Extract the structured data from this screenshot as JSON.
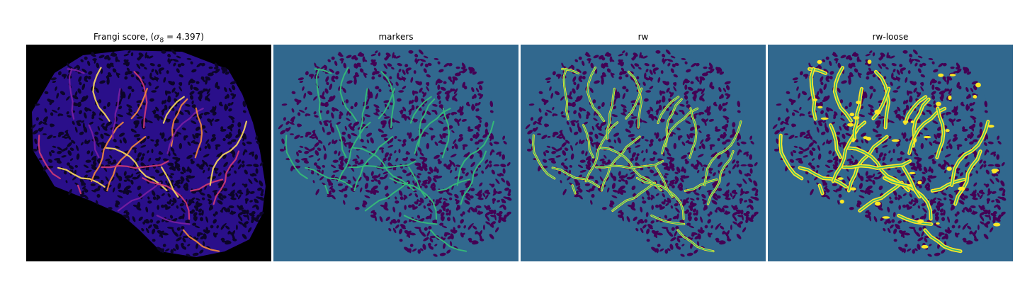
{
  "figure": {
    "panels": [
      {
        "key": "frangi",
        "title_prefix": "Frangi score, (",
        "title_symbol": "σ",
        "title_subscript": "8",
        "title_suffix": " = 4.397)"
      },
      {
        "key": "markers",
        "title": "markers"
      },
      {
        "key": "rw",
        "title": "rw"
      },
      {
        "key": "rw_loose",
        "title": "rw-loose"
      }
    ]
  },
  "colors": {
    "background_frangi": "#000000",
    "tissue_frangi": "#2a0f8a",
    "vessel_frangi": [
      "#7b1fa2",
      "#d13a75",
      "#f58a3c",
      "#fcd95a"
    ],
    "background_labels": "#31688e",
    "tissue_labels": "#440154",
    "marker_vessel": "#35b779",
    "segmented_vessel": "#fde725"
  }
}
